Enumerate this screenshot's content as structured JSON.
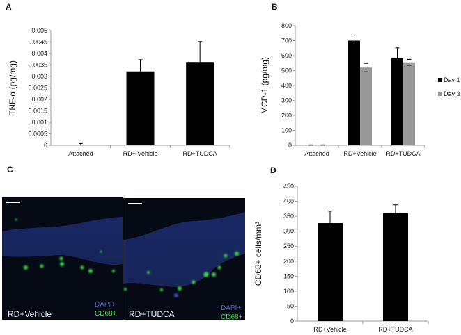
{
  "panels": {
    "a": "A",
    "b": "B",
    "c": "C",
    "d": "D"
  },
  "chart_data": [
    {
      "id": "A",
      "type": "bar",
      "ylabel": "TNF-α (pg/mg)",
      "categories": [
        "Attached",
        "RD+ Vehicle",
        "RD+TUDCA"
      ],
      "values": [
        0,
        0.00322,
        0.00363
      ],
      "errors": [
        8e-05,
        0.00051,
        0.00089
      ],
      "ylim": [
        0,
        0.005
      ],
      "yticks": [
        "0",
        "0.0005",
        "0.001",
        "0.0015",
        "0.002",
        "0.0025",
        "0.003",
        "0.0035",
        "0.004",
        "0.0045",
        "0.005"
      ],
      "grid": false,
      "colors": [
        "#000000"
      ]
    },
    {
      "id": "B",
      "type": "bar",
      "ylabel": "MCP-1 (pg/mg)",
      "categories": [
        "Attached",
        "RD+Vehicle",
        "RD+TUDCA"
      ],
      "series": [
        {
          "name": "Day 1",
          "values": [
            2,
            700,
            582
          ],
          "errors": [
            1,
            37,
            70
          ],
          "color": "#000000"
        },
        {
          "name": "Day 3",
          "values": [
            2,
            520,
            555
          ],
          "errors": [
            1,
            28,
            20
          ],
          "color": "#999999"
        }
      ],
      "ylim": [
        0,
        800
      ],
      "yticks": [
        "0",
        "100",
        "200",
        "300",
        "400",
        "500",
        "600",
        "700",
        "800"
      ],
      "legend": "right",
      "grid": false
    },
    {
      "id": "D",
      "type": "bar",
      "ylabel": "CD68+ cells/mm³",
      "categories": [
        "RD+Vehicle",
        "RD+TUDCA"
      ],
      "values": [
        327,
        360
      ],
      "errors": [
        40,
        28
      ],
      "ylim": [
        0,
        450
      ],
      "yticks": [
        "0",
        "50",
        "100",
        "150",
        "200",
        "250",
        "300",
        "350",
        "400",
        "450"
      ],
      "grid": false,
      "colors": [
        "#000000"
      ]
    }
  ],
  "micrographs": [
    {
      "label": "RD+Vehicle",
      "stain1": "DAPI+",
      "stain2": "CD68+"
    },
    {
      "label": "RD+TUDCA",
      "stain1": "DAPI+",
      "stain2": "CD68+"
    }
  ],
  "colors": {
    "dapi": "#4b5fc0",
    "cd68": "#3fd94a",
    "background": "#050a14"
  }
}
